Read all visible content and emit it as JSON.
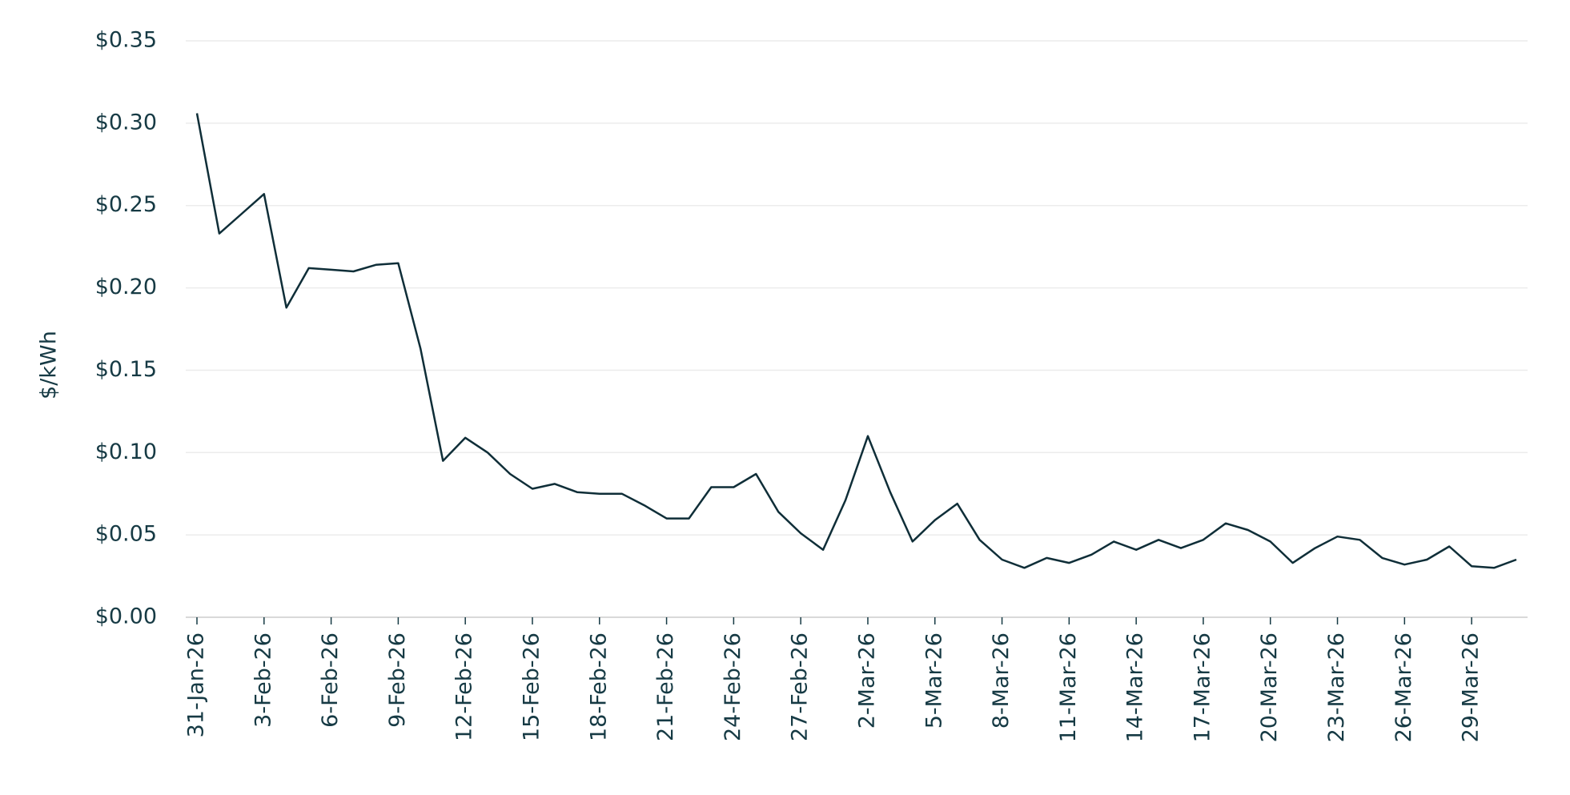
{
  "chart_data": {
    "type": "line",
    "y_label": "$/kWh",
    "categories": [
      "31-Jan-26",
      null,
      null,
      "3-Feb-26",
      null,
      null,
      "6-Feb-26",
      null,
      null,
      "9-Feb-26",
      null,
      null,
      "12-Feb-26",
      null,
      null,
      "15-Feb-26",
      null,
      null,
      "18-Feb-26",
      null,
      null,
      "21-Feb-26",
      null,
      null,
      "24-Feb-26",
      null,
      null,
      "27-Feb-26",
      null,
      null,
      "2-Mar-26",
      null,
      null,
      "5-Mar-26",
      null,
      null,
      "8-Mar-26",
      null,
      null,
      "11-Mar-26",
      null,
      null,
      "14-Mar-26",
      null,
      null,
      "17-Mar-26",
      null,
      null,
      "20-Mar-26",
      null,
      null,
      "23-Mar-26",
      null,
      null,
      "26-Mar-26",
      null,
      null,
      "29-Mar-26",
      null,
      null
    ],
    "values": [
      0.306,
      0.233,
      0.245,
      0.257,
      0.188,
      0.212,
      0.211,
      0.21,
      0.214,
      0.215,
      0.163,
      0.095,
      0.109,
      0.1,
      0.087,
      0.078,
      0.081,
      0.076,
      0.075,
      0.075,
      0.068,
      0.06,
      0.06,
      0.079,
      0.079,
      0.087,
      0.064,
      0.051,
      0.041,
      0.071,
      0.11,
      0.076,
      0.046,
      0.059,
      0.069,
      0.047,
      0.035,
      0.03,
      0.036,
      0.033,
      0.038,
      0.046,
      0.041,
      0.047,
      0.042,
      0.047,
      0.057,
      0.053,
      0.046,
      0.033,
      0.042,
      0.049,
      0.047,
      0.036,
      0.032,
      0.035,
      0.043,
      0.031,
      0.03,
      0.035
    ],
    "color": "#0f2e38",
    "ylim": [
      0,
      0.35
    ],
    "yticks": [
      {
        "value": 0,
        "label": "$0.00"
      },
      {
        "value": 0.05,
        "label": "$0.05"
      },
      {
        "value": 0.1,
        "label": "$0.10"
      },
      {
        "value": 0.15,
        "label": "$0.15"
      },
      {
        "value": 0.2,
        "label": "$0.20"
      },
      {
        "value": 0.25,
        "label": "$0.25"
      },
      {
        "value": 0.3,
        "label": "$0.30"
      },
      {
        "value": 0.35,
        "label": "$0.35"
      }
    ],
    "grid": true
  }
}
